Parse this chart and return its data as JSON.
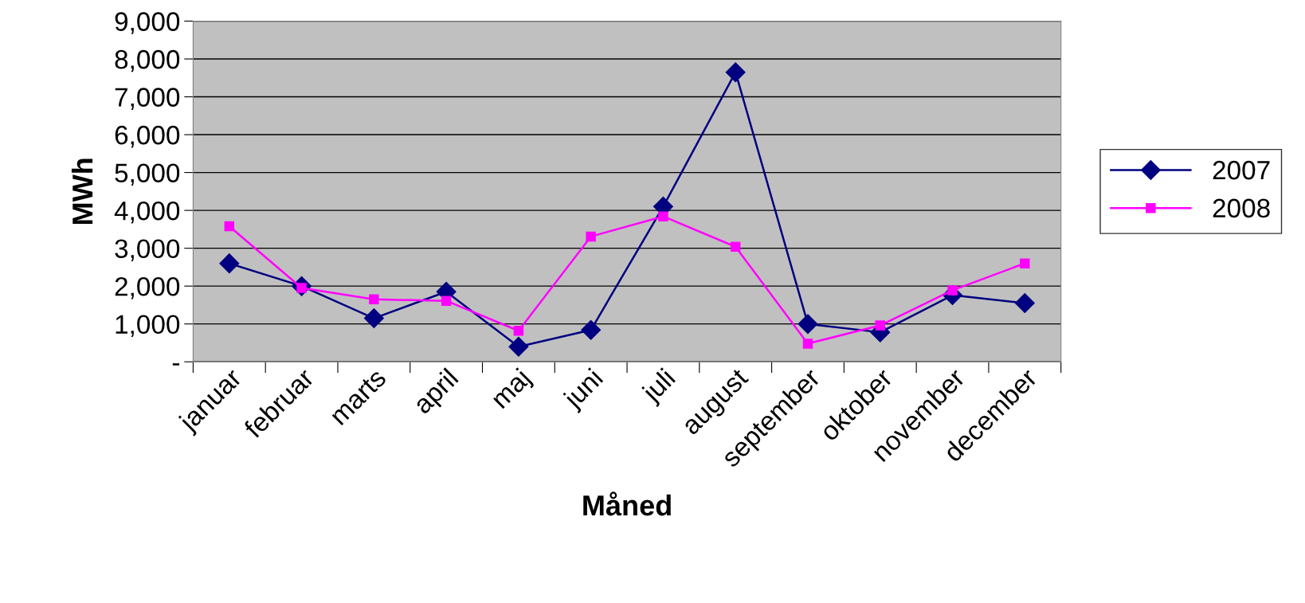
{
  "chart_data": {
    "type": "line",
    "xlabel": "Måned",
    "ylabel": "MWh",
    "categories": [
      "januar",
      "februar",
      "marts",
      "april",
      "maj",
      "juni",
      "juli",
      "august",
      "september",
      "oktober",
      "november",
      "december"
    ],
    "series": [
      {
        "name": "2007",
        "color": "#000080",
        "marker": "diamond",
        "values": [
          2600,
          2000,
          1150,
          1850,
          400,
          840,
          4100,
          7650,
          1000,
          780,
          1760,
          1550
        ]
      },
      {
        "name": "2008",
        "color": "#ff00ff",
        "marker": "square",
        "values": [
          3580,
          1950,
          1650,
          1610,
          820,
          3310,
          3840,
          3040,
          480,
          960,
          1890,
          2600
        ]
      }
    ],
    "ylim": [
      0,
      9000
    ],
    "yticks": [
      {
        "value": 0,
        "label": "-"
      },
      {
        "value": 1000,
        "label": "1,000"
      },
      {
        "value": 2000,
        "label": "2,000"
      },
      {
        "value": 3000,
        "label": "3,000"
      },
      {
        "value": 4000,
        "label": "4,000"
      },
      {
        "value": 5000,
        "label": "5,000"
      },
      {
        "value": 6000,
        "label": "6,000"
      },
      {
        "value": 7000,
        "label": "7,000"
      },
      {
        "value": 8000,
        "label": "8,000"
      },
      {
        "value": 9000,
        "label": "9,000"
      }
    ],
    "grid": "y",
    "legend": "right",
    "line_style": "solid"
  }
}
